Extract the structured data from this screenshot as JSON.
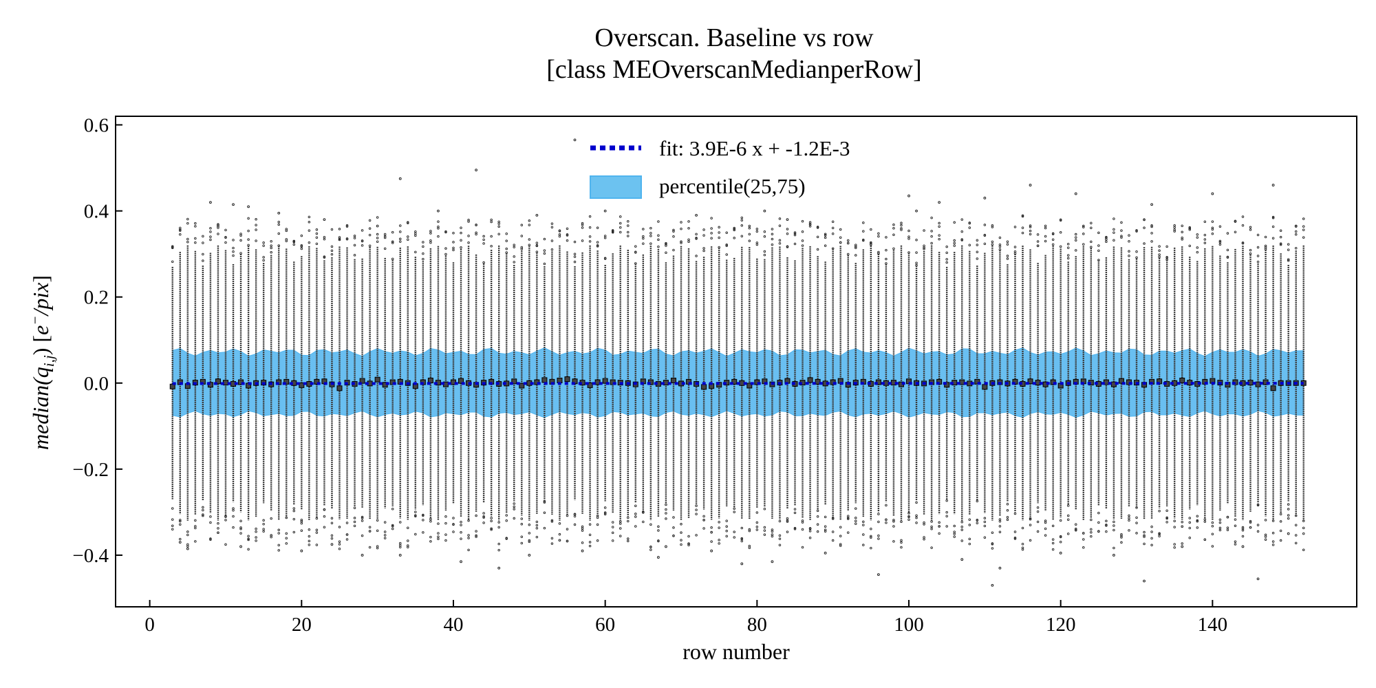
{
  "chart_data": {
    "type": "scatter",
    "title_line1": "Overscan. Baseline vs row",
    "title_line2": "[class MEOverscanMedianperRow]",
    "xlabel": "row number",
    "ylabel": "median(q_{i,j}) [e^{-}/pix]",
    "xlim": [
      -4.5,
      159
    ],
    "ylim": [
      -0.52,
      0.62
    ],
    "x_ticks": [
      0,
      20,
      40,
      60,
      80,
      100,
      120,
      140
    ],
    "y_ticks": [
      {
        "value": 0.6,
        "label": "0.6"
      },
      {
        "value": 0.4,
        "label": "0.4"
      },
      {
        "value": 0.2,
        "label": "0.2"
      },
      {
        "value": 0.0,
        "label": "0.0"
      },
      {
        "value": -0.2,
        "label": "−0.2"
      },
      {
        "value": -0.4,
        "label": "−0.4"
      }
    ],
    "grid": false,
    "legend_position": "top-center",
    "row_range": [
      3,
      152
    ],
    "fit": {
      "label": "fit: 3.9E-6 x + -1.2E-3",
      "slope": 3.9e-06,
      "intercept": -0.0012,
      "color": "#0000cc"
    },
    "band": {
      "label": "percentile(25,75)",
      "color": "#4fb4ee",
      "lower": -0.072,
      "upper": 0.072
    },
    "median_values": [
      -0.008,
      0.002,
      -0.007,
      0.001,
      0.003,
      -0.004,
      0.004,
      0.001,
      -0.002,
      0.002,
      -0.006,
      0.0,
      0.001,
      -0.003,
      0.002,
      0.003,
      0.0,
      -0.005,
      -0.002,
      0.003,
      0.004,
      -0.003,
      -0.012,
      0.001,
      -0.002,
      0.005,
      -0.001,
      0.008,
      -0.004,
      0.002,
      0.003,
      0.0,
      -0.007,
      0.002,
      0.006,
      0.001,
      -0.003,
      0.002,
      0.005,
      0.0,
      -0.004,
      0.001,
      0.003,
      -0.002,
      -0.001,
      0.004,
      -0.006,
      0.0,
      0.002,
      0.007,
      0.003,
      0.006,
      0.009,
      0.004,
      0.001,
      -0.005,
      0.002,
      0.005,
      0.002,
      0.001,
      0.0,
      -0.003,
      0.004,
      0.002,
      -0.002,
      0.001,
      0.006,
      -0.001,
      0.003,
      -0.002,
      -0.009,
      -0.007,
      -0.004,
      0.001,
      0.003,
      0.0,
      -0.006,
      0.002,
      0.004,
      -0.003,
      0.001,
      0.005,
      -0.002,
      0.001,
      0.007,
      0.003,
      -0.001,
      0.002,
      0.005,
      -0.004,
      0.001,
      0.003,
      -0.002,
      0.002,
      0.0,
      0.001,
      -0.003,
      0.004,
      0.0,
      -0.001,
      0.002,
      0.003,
      -0.004,
      0.001,
      0.002,
      -0.001,
      0.003,
      -0.009,
      0.0,
      0.002,
      -0.001,
      0.003,
      -0.002,
      0.004,
      0.001,
      -0.003,
      0.002,
      -0.006,
      0.0,
      0.003,
      0.004,
      0.001,
      -0.002,
      0.002,
      -0.003,
      0.005,
      0.002,
      0.001,
      -0.004,
      0.003,
      0.004,
      -0.002,
      0.0,
      0.006,
      0.001,
      -0.002,
      0.003,
      0.005,
      0.001,
      -0.004,
      0.002,
      0.0,
      0.001,
      -0.003,
      0.002,
      -0.012
    ],
    "outlier_points": [
      {
        "x": 4,
        "y": -0.37
      },
      {
        "x": 5,
        "y": -0.385
      },
      {
        "x": 8,
        "y": 0.42
      },
      {
        "x": 9,
        "y": 0.365
      },
      {
        "x": 11,
        "y": 0.415
      },
      {
        "x": 12,
        "y": -0.38
      },
      {
        "x": 13,
        "y": 0.41
      },
      {
        "x": 17,
        "y": 0.395
      },
      {
        "x": 20,
        "y": -0.39
      },
      {
        "x": 23,
        "y": 0.38
      },
      {
        "x": 24,
        "y": -0.375
      },
      {
        "x": 28,
        "y": -0.4
      },
      {
        "x": 30,
        "y": 0.365
      },
      {
        "x": 33,
        "y": 0.475
      },
      {
        "x": 33,
        "y": -0.4
      },
      {
        "x": 38,
        "y": 0.4
      },
      {
        "x": 41,
        "y": -0.415
      },
      {
        "x": 43,
        "y": 0.495
      },
      {
        "x": 46,
        "y": -0.43
      },
      {
        "x": 50,
        "y": -0.4
      },
      {
        "x": 51,
        "y": 0.39
      },
      {
        "x": 56,
        "y": 0.565
      },
      {
        "x": 57,
        "y": -0.39
      },
      {
        "x": 60,
        "y": 0.4
      },
      {
        "x": 67,
        "y": -0.405
      },
      {
        "x": 68,
        "y": -0.38
      },
      {
        "x": 72,
        "y": 0.39
      },
      {
        "x": 74,
        "y": -0.39
      },
      {
        "x": 78,
        "y": -0.42
      },
      {
        "x": 81,
        "y": 0.4
      },
      {
        "x": 82,
        "y": -0.415
      },
      {
        "x": 84,
        "y": 0.38
      },
      {
        "x": 89,
        "y": -0.395
      },
      {
        "x": 96,
        "y": -0.445
      },
      {
        "x": 100,
        "y": 0.435
      },
      {
        "x": 101,
        "y": 0.4
      },
      {
        "x": 104,
        "y": 0.42
      },
      {
        "x": 107,
        "y": -0.41
      },
      {
        "x": 110,
        "y": 0.43
      },
      {
        "x": 111,
        "y": -0.47
      },
      {
        "x": 112,
        "y": -0.43
      },
      {
        "x": 116,
        "y": 0.46
      },
      {
        "x": 120,
        "y": -0.395
      },
      {
        "x": 122,
        "y": 0.44
      },
      {
        "x": 127,
        "y": -0.4
      },
      {
        "x": 131,
        "y": -0.46
      },
      {
        "x": 132,
        "y": 0.415
      },
      {
        "x": 136,
        "y": -0.38
      },
      {
        "x": 140,
        "y": 0.44
      },
      {
        "x": 144,
        "y": -0.38
      },
      {
        "x": 146,
        "y": -0.455
      },
      {
        "x": 148,
        "y": 0.46
      },
      {
        "x": 150,
        "y": -0.35
      },
      {
        "x": 151,
        "y": 0.365
      }
    ],
    "column_point_summary": "per-row scatter of pixel medians, roughly ±0.32 around zero"
  }
}
